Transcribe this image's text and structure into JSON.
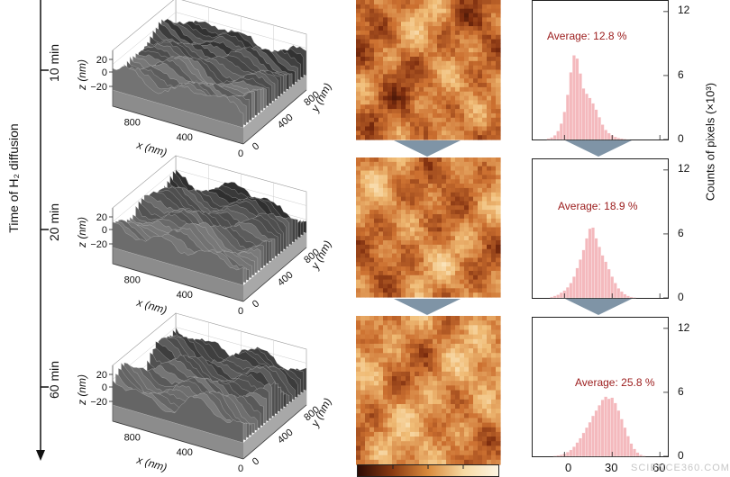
{
  "time_axis": {
    "label": "Time of H₂ diffusion",
    "times": [
      "10 min",
      "20 min",
      "60 min"
    ]
  },
  "surface_3d": {
    "z_label": "z (nm)",
    "x_label": "x (nm)",
    "y_label": "y (nm)",
    "z_ticks": [
      "20",
      "0",
      "−20"
    ],
    "x_ticks": [
      "800",
      "400",
      "0"
    ],
    "y_ticks": [
      "0",
      "400",
      "800"
    ]
  },
  "histogram_axis": {
    "ylabel": "Counts of pixels (×10³)",
    "y_ticks": [
      "12",
      "6",
      "0"
    ],
    "x_ticks": [
      "0",
      "30",
      "60"
    ]
  },
  "colorbar": {
    "colors": [
      "#2b0a04",
      "#8a3a12",
      "#d98a3c",
      "#f6d9a2",
      "#fdf6e3"
    ]
  },
  "watermark": "SCIENCE360.COM",
  "chart_data": [
    {
      "type": "bar",
      "title": "Average: 12.8 %",
      "xlabel": "",
      "ylabel": "Counts of pixels (×10³)",
      "xlim": [
        -20,
        65
      ],
      "ylim": [
        0,
        13
      ],
      "bar_color": "#f4b9bd",
      "x": [
        -10,
        -8,
        -6,
        -4,
        -2,
        0,
        2,
        4,
        6,
        8,
        10,
        12,
        14,
        16,
        18,
        20,
        22,
        24,
        26,
        28,
        30,
        32,
        34,
        36,
        38,
        40
      ],
      "values": [
        0.1,
        0.2,
        0.4,
        0.8,
        1.5,
        2.6,
        4.2,
        6.3,
        7.9,
        7.6,
        6.2,
        4.8,
        4.3,
        3.9,
        3.4,
        2.8,
        2.1,
        1.4,
        0.9,
        0.6,
        0.4,
        0.25,
        0.15,
        0.1,
        0.05,
        0.02
      ]
    },
    {
      "type": "bar",
      "title": "Average: 18.9 %",
      "xlabel": "",
      "ylabel": "Counts of pixels (×10³)",
      "xlim": [
        -20,
        65
      ],
      "ylim": [
        0,
        13
      ],
      "bar_color": "#f4b9bd",
      "x": [
        -8,
        -6,
        -4,
        -2,
        0,
        2,
        4,
        6,
        8,
        10,
        12,
        14,
        16,
        18,
        20,
        22,
        24,
        26,
        28,
        30,
        32,
        34,
        36,
        38,
        40,
        42,
        44
      ],
      "values": [
        0.1,
        0.2,
        0.3,
        0.5,
        0.7,
        1.0,
        1.4,
        2.0,
        2.8,
        3.6,
        4.5,
        5.6,
        6.5,
        6.6,
        5.6,
        4.8,
        4.0,
        3.4,
        2.7,
        2.0,
        1.4,
        0.9,
        0.6,
        0.35,
        0.2,
        0.1,
        0.05
      ]
    },
    {
      "type": "bar",
      "title": "Average: 25.8 %",
      "xlabel": "",
      "ylabel": "Counts of pixels (×10³)",
      "xlim": [
        -20,
        65
      ],
      "ylim": [
        0,
        13
      ],
      "bar_color": "#f4b9bd",
      "x": [
        -6,
        -4,
        -2,
        0,
        2,
        4,
        6,
        8,
        10,
        12,
        14,
        16,
        18,
        20,
        22,
        24,
        26,
        28,
        30,
        32,
        34,
        36,
        38,
        40,
        42,
        44,
        46,
        48,
        50
      ],
      "values": [
        0.05,
        0.1,
        0.15,
        0.25,
        0.4,
        0.6,
        0.9,
        1.3,
        1.7,
        2.2,
        2.7,
        3.2,
        3.8,
        4.3,
        4.8,
        5.3,
        5.6,
        5.4,
        5.5,
        5.0,
        4.3,
        3.5,
        2.7,
        1.9,
        1.2,
        0.7,
        0.35,
        0.15,
        0.05
      ]
    }
  ]
}
